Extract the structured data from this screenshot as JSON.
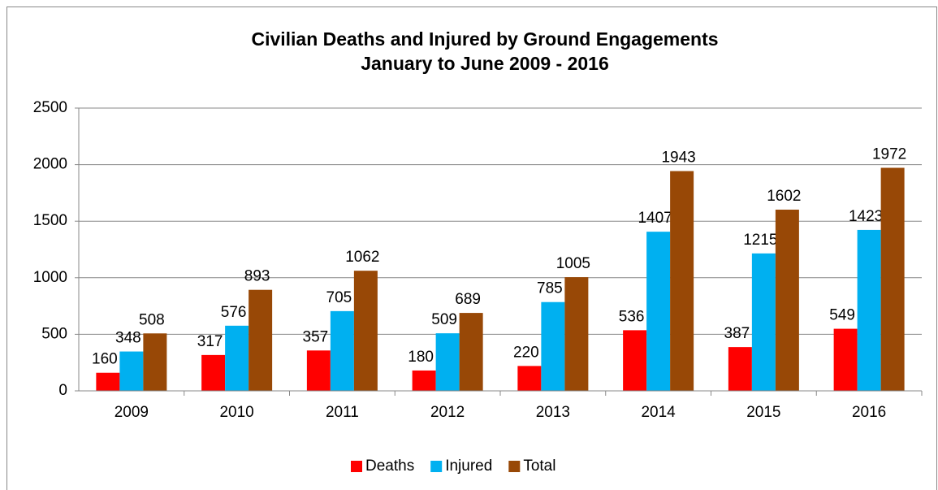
{
  "chart_data": {
    "type": "bar",
    "title": "Civilian Deaths and Injured by Ground Engagements",
    "subtitle": "January to June 2009 - 2016",
    "categories": [
      "2009",
      "2010",
      "2011",
      "2012",
      "2013",
      "2014",
      "2015",
      "2016"
    ],
    "series": [
      {
        "name": "Deaths",
        "color": "#ff0000",
        "values": [
          160,
          317,
          357,
          180,
          220,
          536,
          387,
          549
        ]
      },
      {
        "name": "Injured",
        "color": "#00b0f0",
        "values": [
          348,
          576,
          705,
          509,
          785,
          1407,
          1215,
          1423
        ]
      },
      {
        "name": "Total",
        "color": "#984806",
        "values": [
          508,
          893,
          1062,
          689,
          1005,
          1943,
          1602,
          1972
        ]
      }
    ],
    "ylim": [
      0,
      2500
    ],
    "yticks": [
      0,
      500,
      1000,
      1500,
      2000,
      2500
    ],
    "grid": true,
    "legend": "bottom"
  }
}
